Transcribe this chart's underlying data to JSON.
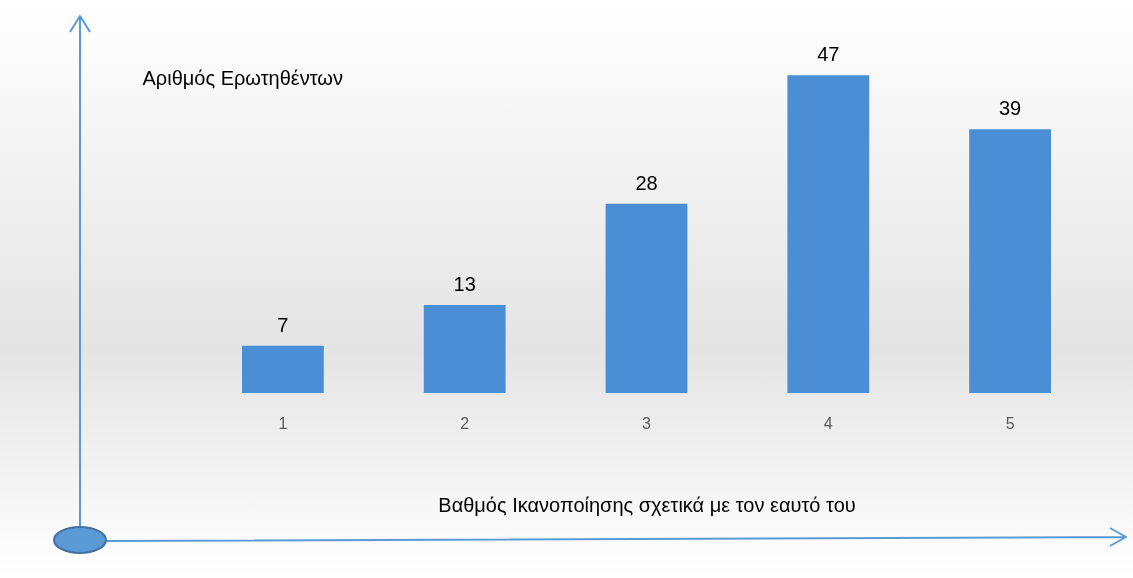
{
  "chart_data": {
    "type": "bar",
    "xlabel": "Βαθμός Ικανοποίησης σχετικά με τον εαυτό του",
    "ylabel": "Αριθμός Ερωτηθέντων",
    "categories": [
      "1",
      "2",
      "3",
      "4",
      "5"
    ],
    "values": [
      7,
      13,
      28,
      47,
      39
    ],
    "color": "#4a8fd6",
    "data_labels": true
  }
}
